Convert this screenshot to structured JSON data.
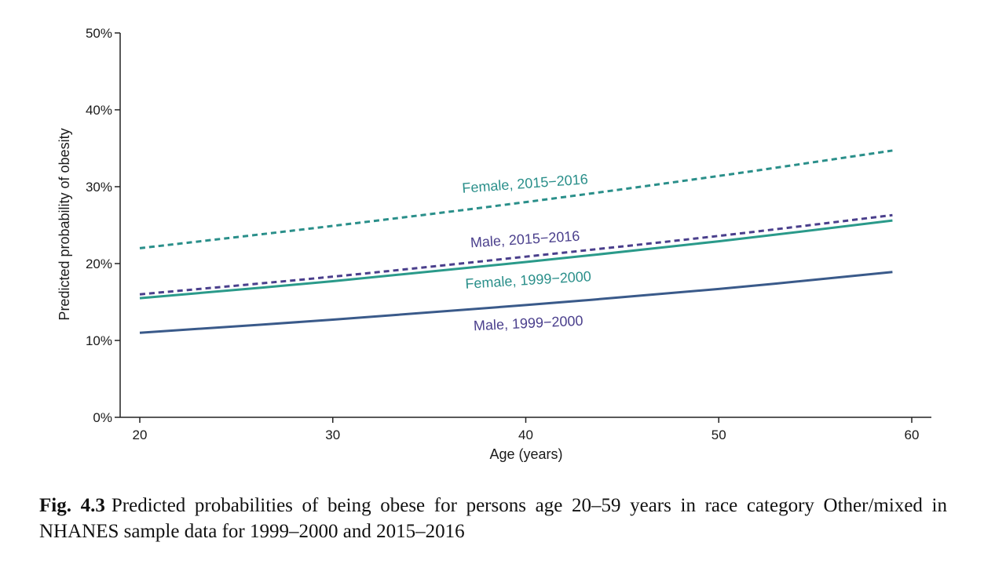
{
  "chart_data": {
    "type": "line",
    "xlabel": "Age (years)",
    "ylabel": "Predicted probability of obesity",
    "xlim": [
      19,
      61
    ],
    "ylim": [
      0,
      50
    ],
    "x_ticks": [
      20,
      30,
      40,
      50,
      60
    ],
    "y_ticks": [
      0,
      10,
      20,
      30,
      40,
      50
    ],
    "y_tick_labels": [
      "0%",
      "10%",
      "20%",
      "30%",
      "40%",
      "50%"
    ],
    "grid": false,
    "legend": "none",
    "series": [
      {
        "name": "Female, 2015−2016",
        "color": "#2a8f8a",
        "style": "dashed",
        "x": [
          20,
          30,
          40,
          50,
          59
        ],
        "y": [
          22.0,
          24.9,
          28.0,
          31.4,
          34.7
        ]
      },
      {
        "name": "Male, 2015−2016",
        "color": "#4a3f8c",
        "style": "dashed",
        "x": [
          20,
          30,
          40,
          50,
          59
        ],
        "y": [
          16.0,
          18.3,
          20.9,
          23.6,
          26.3
        ]
      },
      {
        "name": "Female, 1999−2000",
        "color": "#2a9a8a",
        "style": "solid",
        "x": [
          20,
          30,
          40,
          50,
          59
        ],
        "y": [
          15.5,
          17.7,
          20.2,
          22.9,
          25.6
        ]
      },
      {
        "name": "Male, 1999−2000",
        "color": "#3a5a8a",
        "style": "solid",
        "x": [
          20,
          30,
          40,
          50,
          59
        ],
        "y": [
          11.0,
          12.7,
          14.6,
          16.7,
          18.9
        ]
      }
    ],
    "label_colors": {
      "female": "#2a8f8a",
      "male": "#4a3f8c"
    }
  },
  "caption": {
    "label": "Fig. 4.3",
    "text": "Predicted probabilities of being obese for persons age 20–59 years in race category Other/mixed in NHANES sample data for 1999–2000 and 2015–2016"
  }
}
